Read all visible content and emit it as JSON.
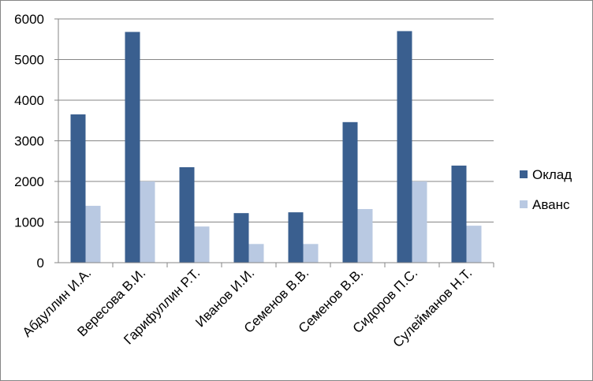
{
  "chart_data": {
    "type": "bar",
    "title": "",
    "xlabel": "",
    "ylabel": "",
    "ylim": [
      0,
      6000
    ],
    "yticks": [
      0,
      1000,
      2000,
      3000,
      4000,
      5000,
      6000
    ],
    "grid": true,
    "legend_position": "right",
    "categories": [
      "Абдуллин И.А.",
      "Вересова В.И.",
      "Гарифуллин Р.Т.",
      "Иванов И.И.",
      "Семенов В.В.",
      "Семенов В.В.",
      "Сидоров П.С.",
      "Сулейманов Н.Т."
    ],
    "series": [
      {
        "name": "Оклад",
        "color": "#3A5F8F",
        "values": [
          3650,
          5680,
          2350,
          1220,
          1240,
          3460,
          5700,
          2390
        ]
      },
      {
        "name": "Аванс",
        "color": "#B9C9E2",
        "values": [
          1400,
          2000,
          890,
          460,
          460,
          1320,
          2000,
          910
        ]
      }
    ]
  }
}
